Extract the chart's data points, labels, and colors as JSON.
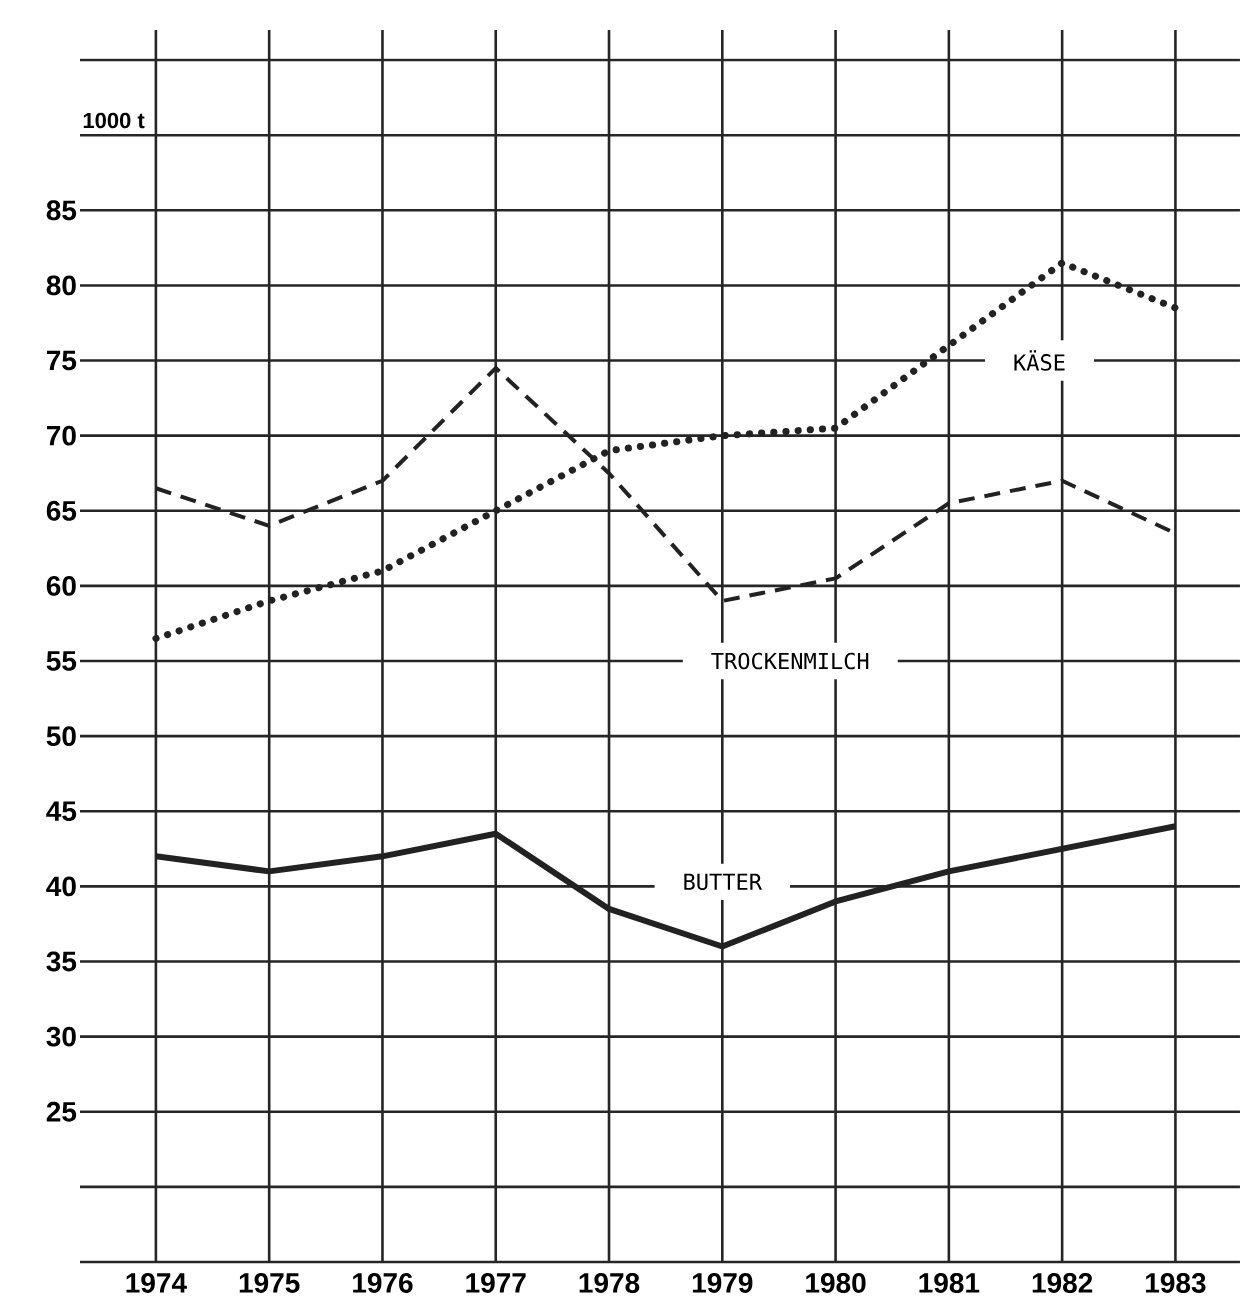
{
  "chart_data": {
    "type": "line",
    "ylabel": "1000 t",
    "categories": [
      "1974",
      "1975",
      "1976",
      "1977",
      "1978",
      "1979",
      "1980",
      "1981",
      "1982",
      "1983"
    ],
    "series": [
      {
        "name": "KÄSE",
        "color": "#222222",
        "line_style": "dotted",
        "values": [
          56.5,
          59,
          61,
          65,
          69,
          70,
          70.5,
          76,
          81.5,
          78.5
        ]
      },
      {
        "name": "TROCKENMILCH",
        "color": "#222222",
        "line_style": "dashed",
        "values": [
          66.5,
          64,
          67,
          74.5,
          67.5,
          59,
          60.5,
          65.5,
          67,
          63.5
        ]
      },
      {
        "name": "BUTTER",
        "color": "#222222",
        "line_style": "solid",
        "values": [
          42,
          41,
          42,
          43.5,
          38.5,
          36,
          39,
          41,
          42.5,
          44
        ]
      }
    ],
    "ylim": [
      15,
      97
    ],
    "yticks": [
      {
        "value": 15,
        "label": null
      },
      {
        "value": 20,
        "label": null
      },
      25,
      30,
      35,
      40,
      45,
      50,
      55,
      60,
      65,
      70,
      75,
      80,
      85,
      {
        "value": 90,
        "label": null
      },
      {
        "value": 95,
        "label": null
      }
    ],
    "grid": true,
    "legend": false
  }
}
